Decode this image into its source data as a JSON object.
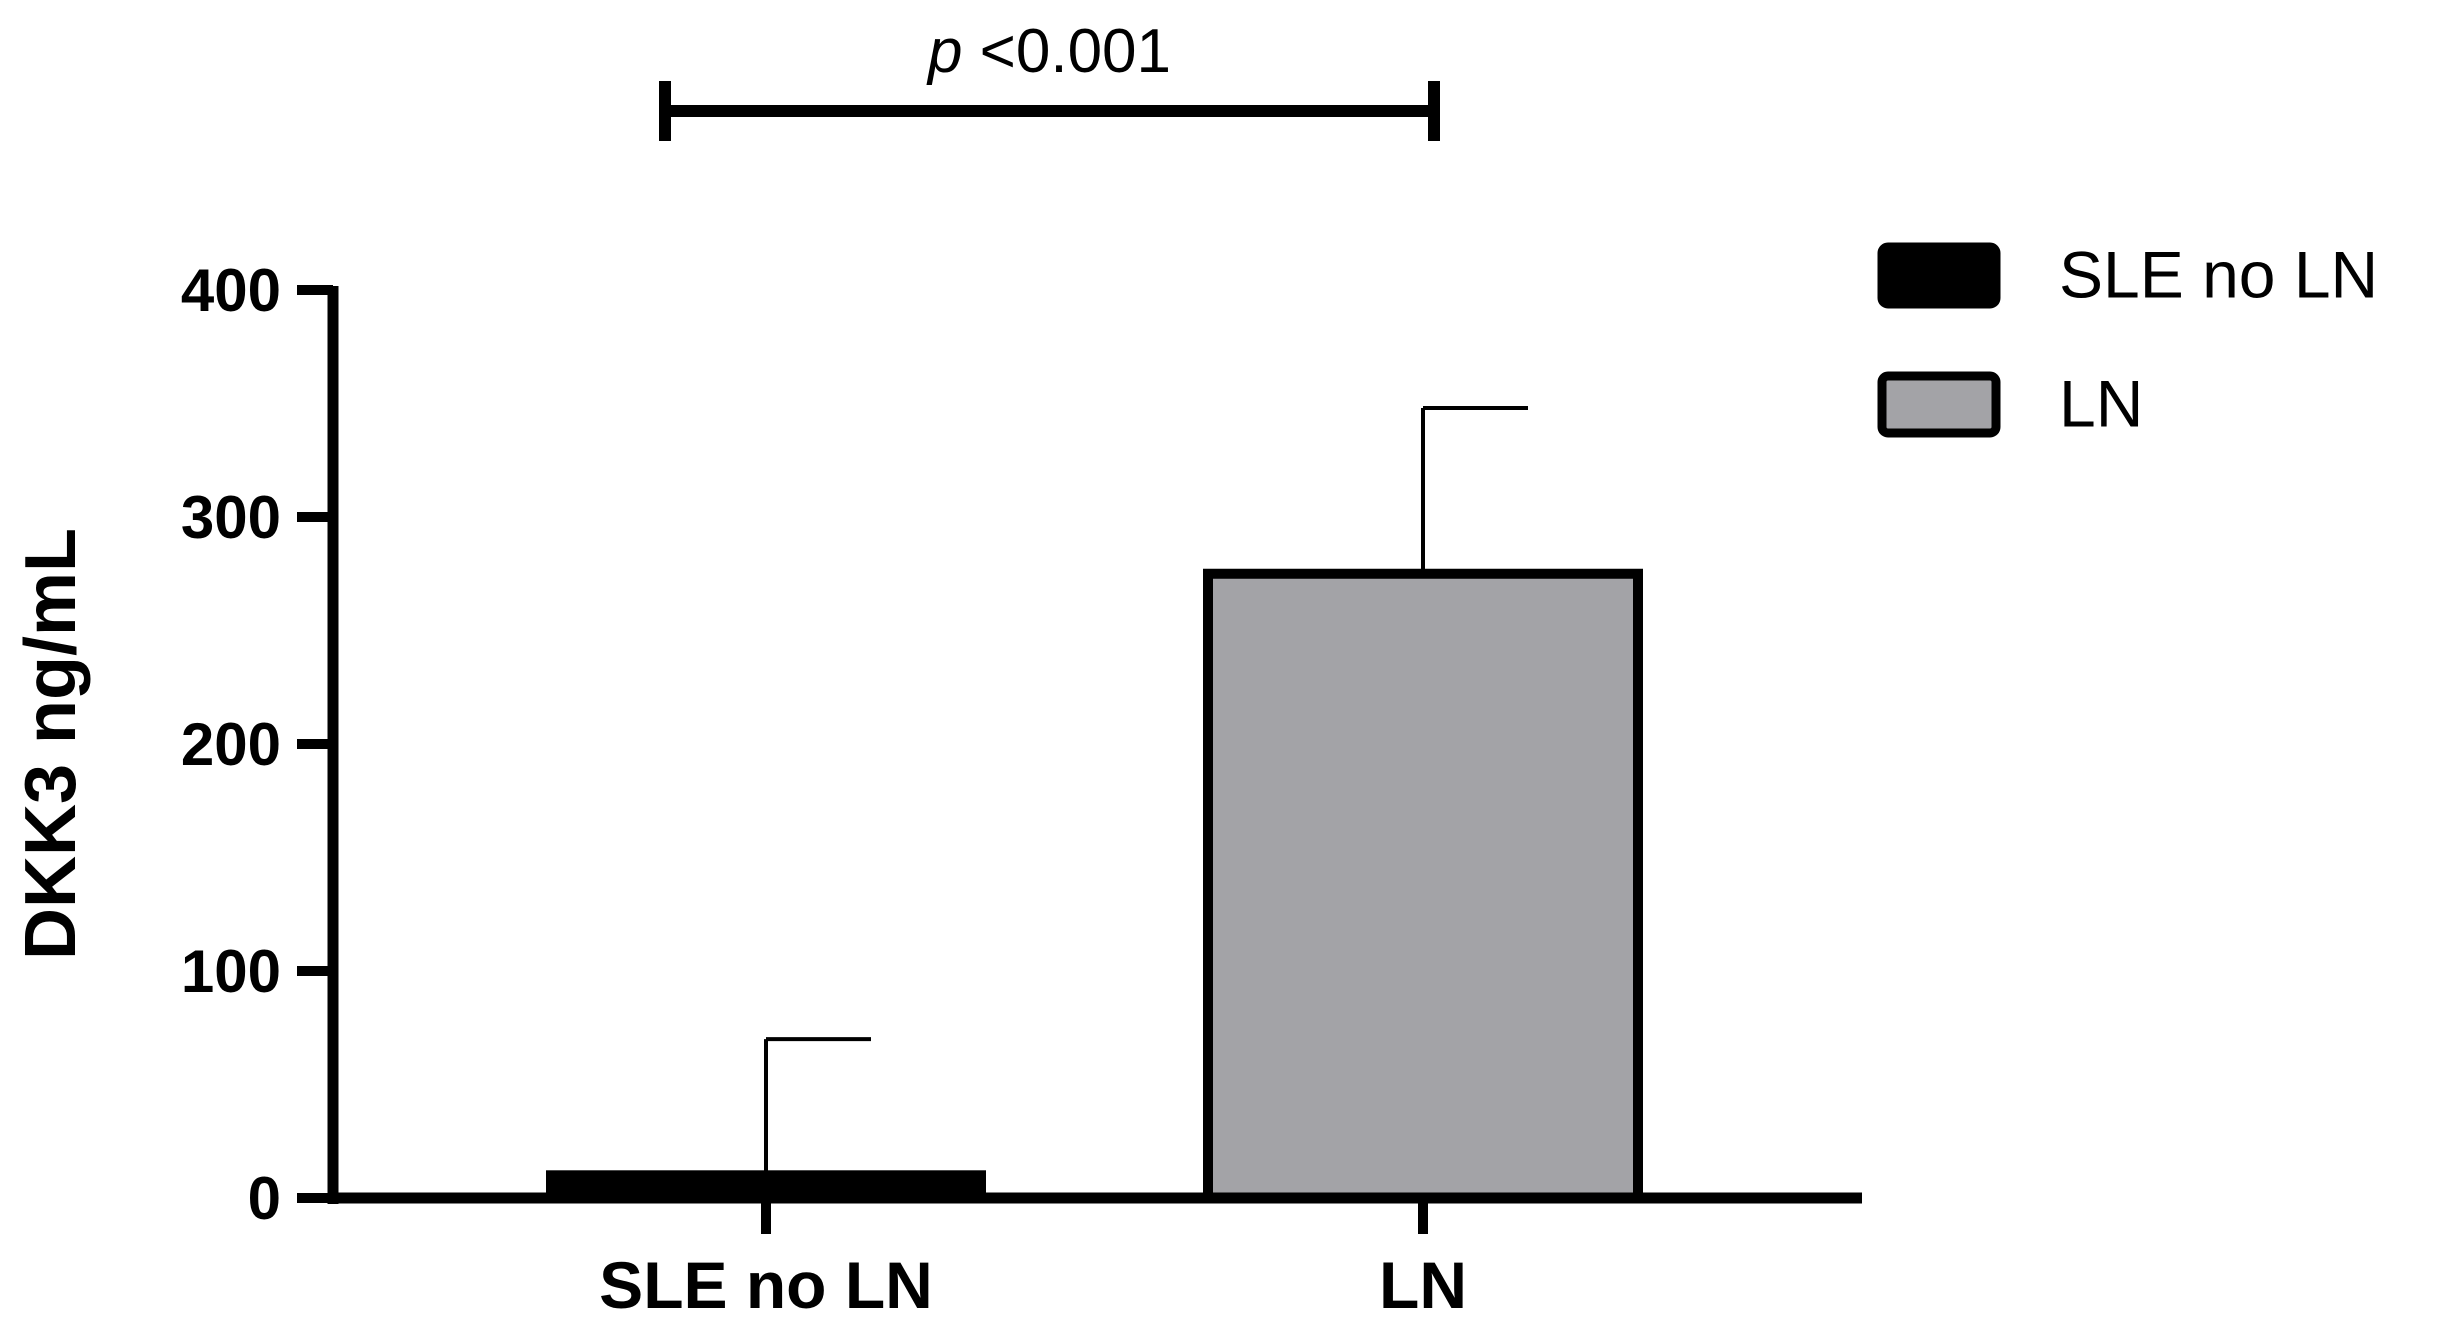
{
  "chart_data": {
    "type": "bar",
    "title": "",
    "xlabel": "",
    "ylabel": "DKK3 ng/mL",
    "ylim": [
      0,
      400
    ],
    "yticks": [
      0,
      100,
      200,
      300,
      400
    ],
    "ytick_labels": [
      "0",
      "100",
      "200",
      "300",
      "400"
    ],
    "grid": false,
    "categories": [
      "SLE no LN",
      "LN"
    ],
    "values": [
      10,
      275
    ],
    "error_upper": [
      70,
      348
    ],
    "colors": [
      "#000000",
      "#a3a3a7"
    ],
    "legend": {
      "placement": "top-right",
      "entries": [
        {
          "label": "SLE no LN",
          "color": "#000000"
        },
        {
          "label": "LN",
          "color": "#a3a3a7"
        }
      ]
    },
    "significance": {
      "p_prefix": "p",
      "p_value": " <0.001",
      "between": [
        "SLE no LN",
        "LN"
      ]
    }
  }
}
